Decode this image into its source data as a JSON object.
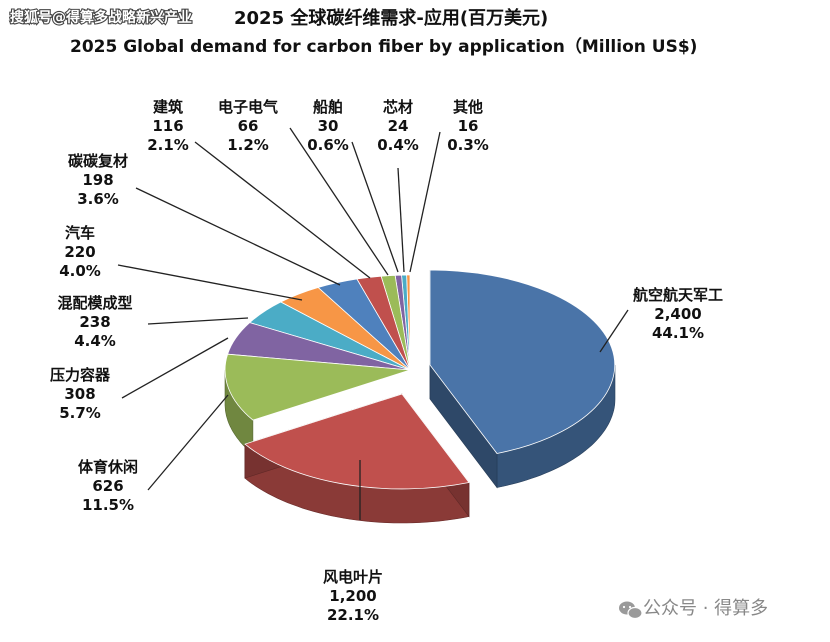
{
  "watermark_top": "搜狐号@得算多战略新兴产业",
  "watermark_bottom": "公众号 · 得算多",
  "chart_data": {
    "type": "pie",
    "title": "2025 全球碳纤维需求-应用(百万美元)",
    "subtitle": "2025 Global demand for carbon fiber by application（Million US$)",
    "slices": [
      {
        "name": "航空航天军工",
        "value": 2400,
        "value_label": "2,400",
        "percent": "44.1%",
        "color": "#4a74a8",
        "exploded": true
      },
      {
        "name": "风电叶片",
        "value": 1200,
        "value_label": "1,200",
        "percent": "22.1%",
        "color": "#c0504d",
        "exploded": true
      },
      {
        "name": "体育休闲",
        "value": 626,
        "value_label": "626",
        "percent": "11.5%",
        "color": "#9bbb59"
      },
      {
        "name": "压力容器",
        "value": 308,
        "value_label": "308",
        "percent": "5.7%",
        "color": "#8064a2"
      },
      {
        "name": "混配模成型",
        "value": 238,
        "value_label": "238",
        "percent": "4.4%",
        "color": "#4bacc6"
      },
      {
        "name": "汽车",
        "value": 220,
        "value_label": "220",
        "percent": "4.0%",
        "color": "#f79646"
      },
      {
        "name": "碳碳复材",
        "value": 198,
        "value_label": "198",
        "percent": "3.6%",
        "color": "#4f81bd"
      },
      {
        "name": "建筑",
        "value": 116,
        "value_label": "116",
        "percent": "2.1%",
        "color": "#c0504d"
      },
      {
        "name": "电子电气",
        "value": 66,
        "value_label": "66",
        "percent": "1.2%",
        "color": "#9bbb59"
      },
      {
        "name": "船舶",
        "value": 30,
        "value_label": "30",
        "percent": "0.6%",
        "color": "#8064a2"
      },
      {
        "name": "芯材",
        "value": 24,
        "value_label": "24",
        "percent": "0.4%",
        "color": "#4bacc6"
      },
      {
        "name": "其他",
        "value": 16,
        "value_label": "16",
        "percent": "0.3%",
        "color": "#f79646"
      }
    ]
  }
}
